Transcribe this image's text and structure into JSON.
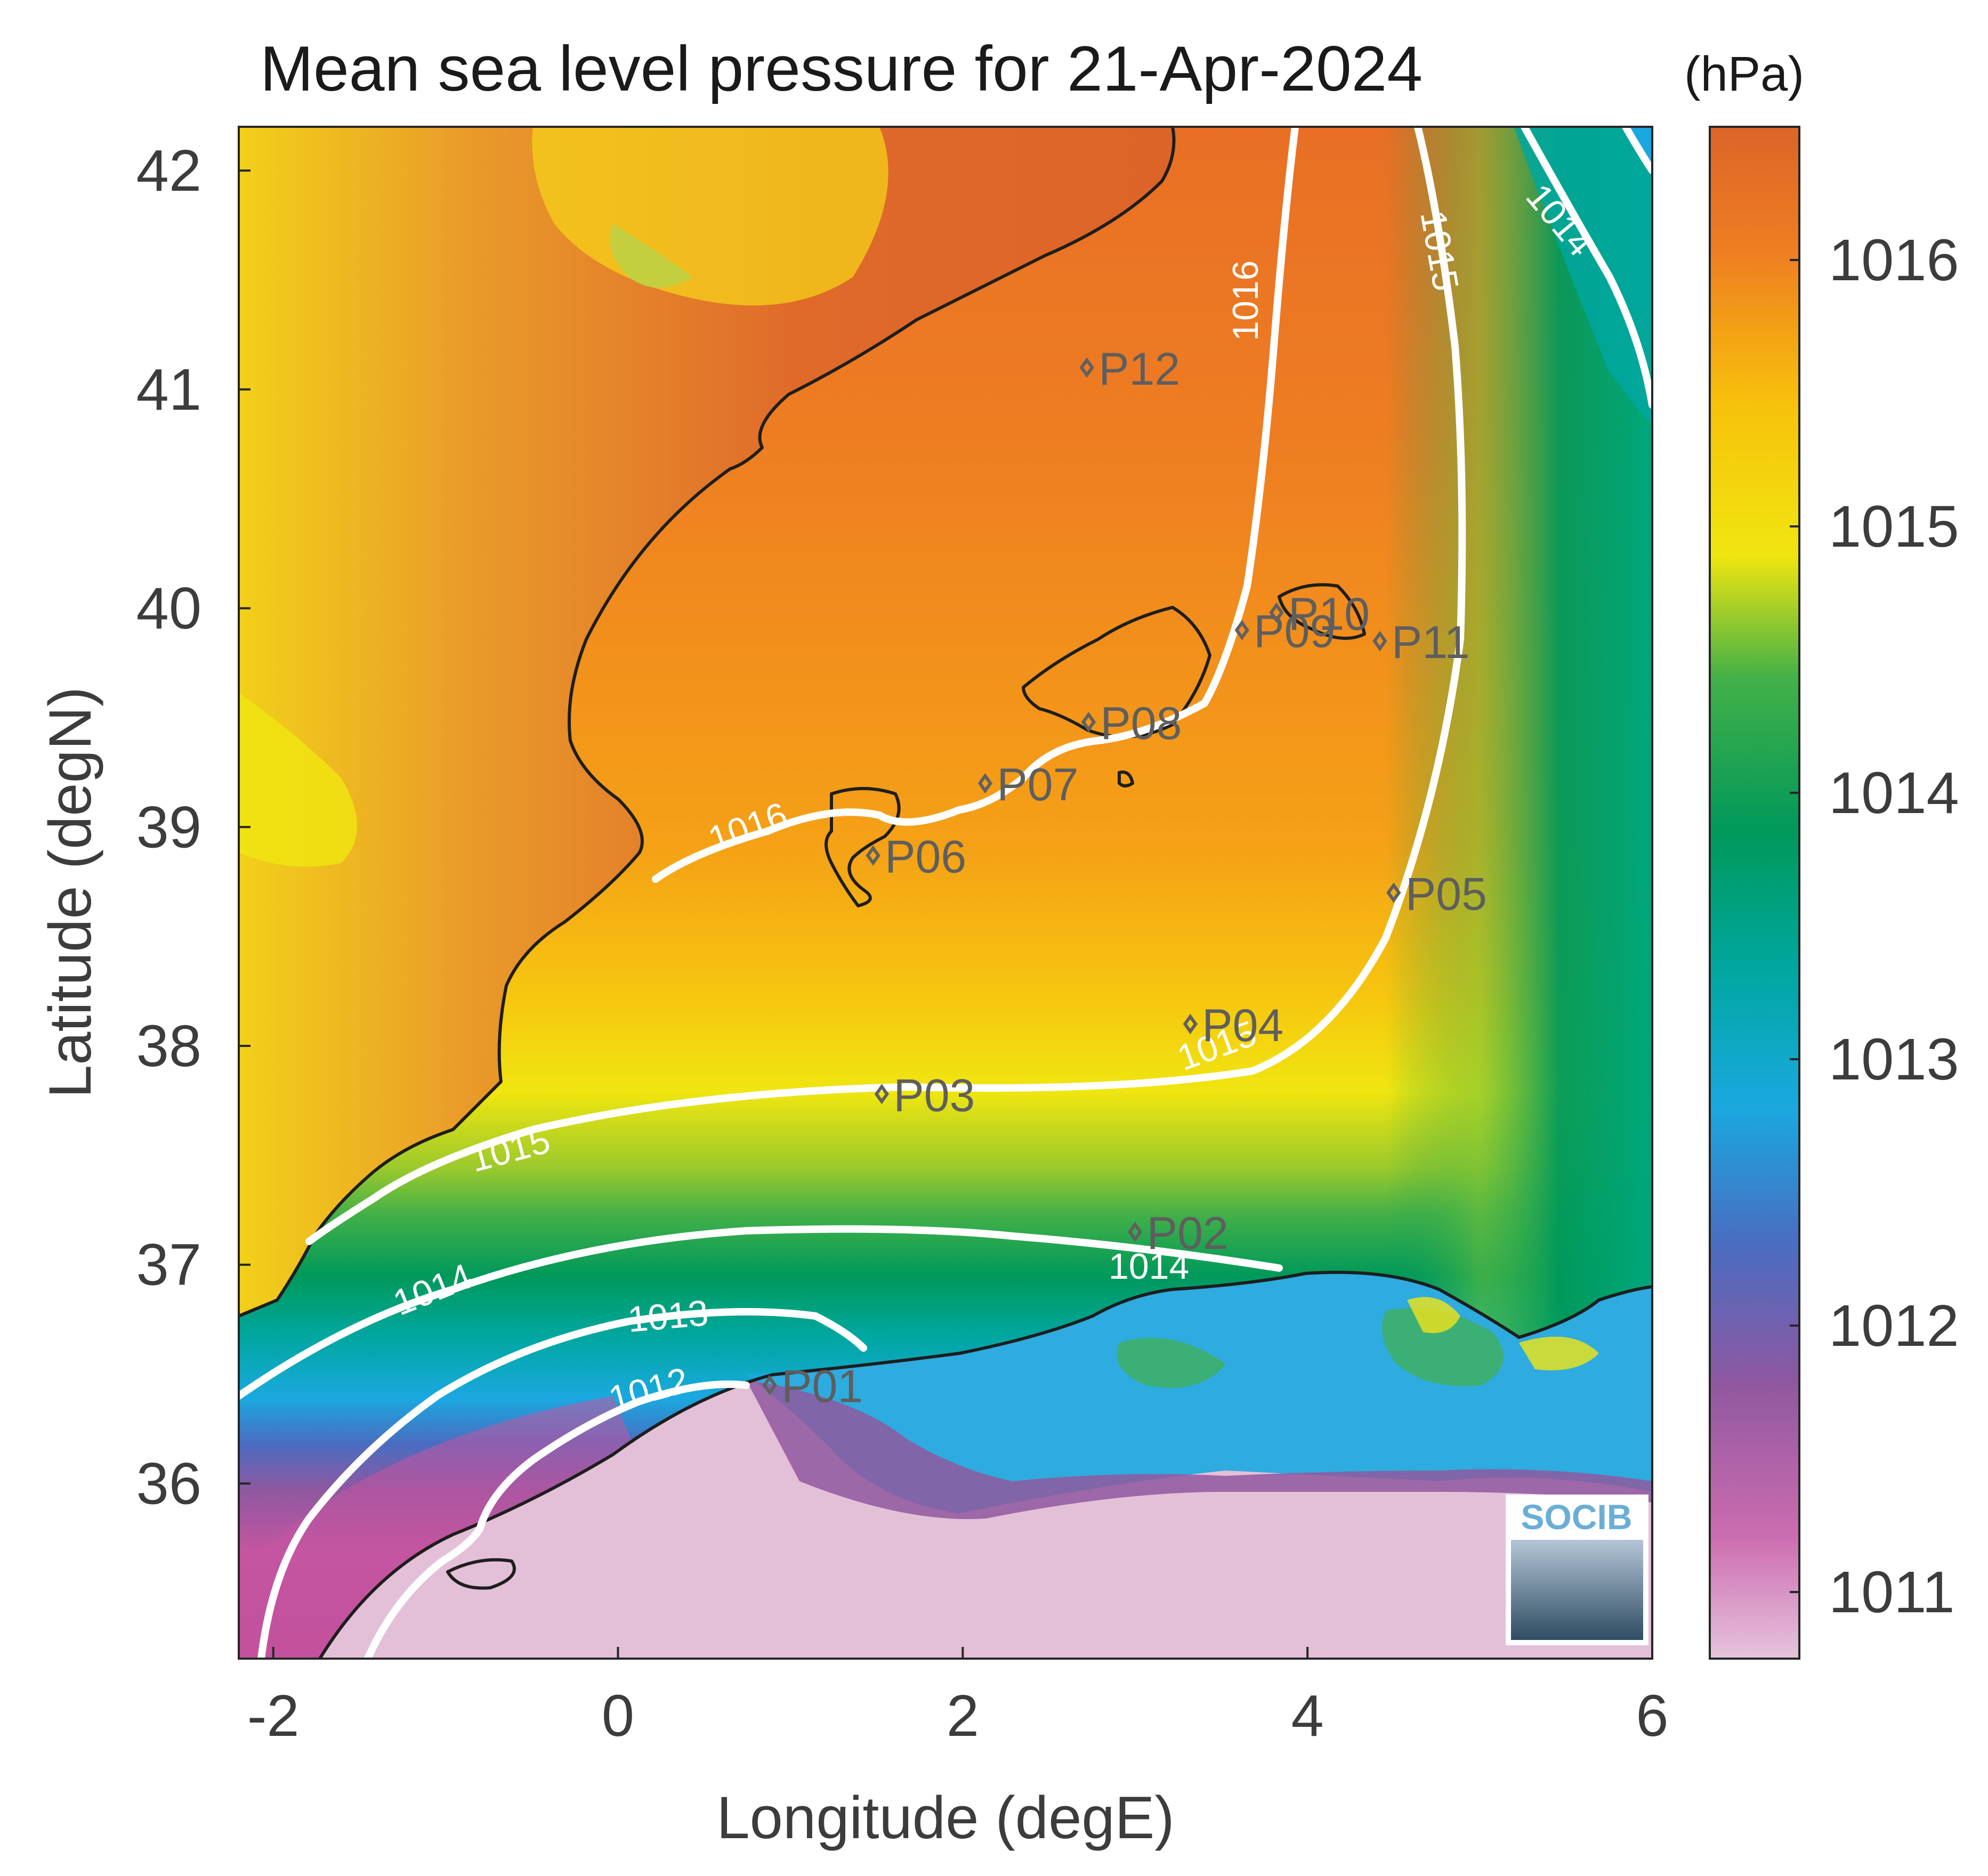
{
  "title": "Mean sea level pressure for 21-Apr-2024",
  "x_axis": {
    "label": "Longitude (degE)",
    "ticks": [
      {
        "value": -2,
        "label": "-2"
      },
      {
        "value": 0,
        "label": "0"
      },
      {
        "value": 2,
        "label": "2"
      },
      {
        "value": 4,
        "label": "4"
      },
      {
        "value": 6,
        "label": "6"
      }
    ]
  },
  "y_axis": {
    "label": "Latitude (degN)",
    "ticks": [
      {
        "value": 36,
        "label": "36"
      },
      {
        "value": 37,
        "label": "37"
      },
      {
        "value": 38,
        "label": "38"
      },
      {
        "value": 39,
        "label": "39"
      },
      {
        "value": 40,
        "label": "40"
      },
      {
        "value": 41,
        "label": "41"
      },
      {
        "value": 42,
        "label": "42"
      }
    ]
  },
  "colorbar": {
    "unit": "(hPa)",
    "ticks": [
      {
        "value": 1011,
        "label": "1011"
      },
      {
        "value": 1012,
        "label": "1012"
      },
      {
        "value": 1013,
        "label": "1013"
      },
      {
        "value": 1014,
        "label": "1014"
      },
      {
        "value": 1015,
        "label": "1015"
      },
      {
        "value": 1016,
        "label": "1016"
      }
    ]
  },
  "contour_labels": {
    "c1016a": "1016",
    "c1016b": "1016",
    "c1015a": "1015",
    "c1015b": "1015",
    "c1015c": "1015",
    "c1014a": "1014",
    "c1014b": "1014",
    "c1014c": "1014",
    "c1013": "1013",
    "c1012": "1012"
  },
  "stations": [
    {
      "id": "P01",
      "lon": 0.88,
      "lat": 36.45
    },
    {
      "id": "P02",
      "lon": 3.0,
      "lat": 37.15
    },
    {
      "id": "P03",
      "lon": 1.53,
      "lat": 37.78
    },
    {
      "id": "P04",
      "lon": 3.32,
      "lat": 38.1
    },
    {
      "id": "P05",
      "lon": 4.5,
      "lat": 38.7
    },
    {
      "id": "P06",
      "lon": 1.48,
      "lat": 38.87
    },
    {
      "id": "P07",
      "lon": 2.13,
      "lat": 39.2
    },
    {
      "id": "P08",
      "lon": 2.73,
      "lat": 39.48
    },
    {
      "id": "P09",
      "lon": 3.62,
      "lat": 39.9
    },
    {
      "id": "P10",
      "lon": 3.82,
      "lat": 39.98
    },
    {
      "id": "P11",
      "lon": 4.42,
      "lat": 39.85
    },
    {
      "id": "P12",
      "lon": 2.72,
      "lat": 41.1
    }
  ],
  "logo_text": "SOCIB",
  "chart_data": {
    "type": "heatmap",
    "title": "Mean sea level pressure for 21-Apr-2024",
    "xlabel": "Longitude (degE)",
    "ylabel": "Latitude (degN)",
    "xlim": [
      -2.2,
      6.0
    ],
    "ylim": [
      35.2,
      42.2
    ],
    "color_range": [
      1010.75,
      1016.5
    ],
    "colorbar_unit": "(hPa)",
    "contour_levels": [
      1012,
      1013,
      1014,
      1015,
      1016
    ],
    "colors": {
      "1011": "#e4c0d8",
      "1011.5": "#c455a0",
      "1012": "#8f58a0",
      "1012.5": "#4a6cc0",
      "1013": "#1aa8e0",
      "1013.5": "#00a7a0",
      "1014": "#00995a",
      "1014.5": "#43b048",
      "1015": "#f0e610",
      "1015.5": "#f7c10b",
      "1016": "#ee7d22",
      "1016.5": "#dd6428"
    },
    "stations": [
      "P01",
      "P02",
      "P03",
      "P04",
      "P05",
      "P06",
      "P07",
      "P08",
      "P09",
      "P10",
      "P11",
      "P12"
    ]
  }
}
